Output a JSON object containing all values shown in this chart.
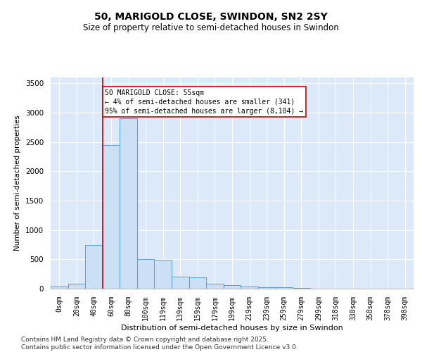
{
  "title1": "50, MARIGOLD CLOSE, SWINDON, SN2 2SY",
  "title2": "Size of property relative to semi-detached houses in Swindon",
  "xlabel": "Distribution of semi-detached houses by size in Swindon",
  "ylabel": "Number of semi-detached properties",
  "bar_color": "#cce0f5",
  "bar_edge_color": "#5b9bd5",
  "bg_color": "#dce9f8",
  "vline_color": "#cc0000",
  "annotation_text": "50 MARIGOLD CLOSE: 55sqm\n← 4% of semi-detached houses are smaller (341)\n95% of semi-detached houses are larger (8,104) →",
  "categories": [
    "0sqm",
    "20sqm",
    "40sqm",
    "60sqm",
    "80sqm",
    "100sqm",
    "119sqm",
    "139sqm",
    "159sqm",
    "179sqm",
    "199sqm",
    "219sqm",
    "239sqm",
    "259sqm",
    "279sqm",
    "299sqm",
    "318sqm",
    "338sqm",
    "358sqm",
    "378sqm",
    "398sqm"
  ],
  "bar_values": [
    40,
    90,
    750,
    2450,
    2900,
    500,
    490,
    200,
    195,
    80,
    60,
    40,
    30,
    20,
    10,
    5,
    3,
    2,
    1,
    1,
    1
  ],
  "vline_x": 3.0,
  "ylim": [
    0,
    3600
  ],
  "yticks": [
    0,
    500,
    1000,
    1500,
    2000,
    2500,
    3000,
    3500
  ],
  "footnote": "Contains HM Land Registry data © Crown copyright and database right 2025.\nContains public sector information licensed under the Open Government Licence v3.0."
}
